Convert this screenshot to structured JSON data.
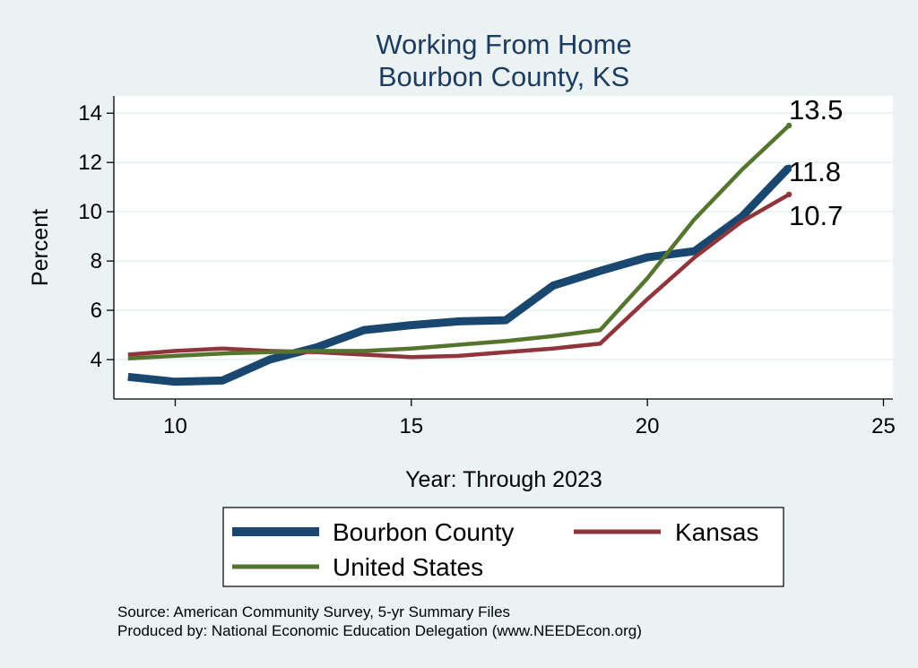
{
  "chart_data": {
    "type": "line",
    "title_lines": [
      "Working From Home",
      "Bourbon County, KS"
    ],
    "xlabel": "Year: Through 2023",
    "ylabel": "Percent",
    "xlim": [
      8.7,
      25.2
    ],
    "ylim": [
      2.4,
      14.7
    ],
    "x_ticks": [
      10,
      15,
      20,
      25
    ],
    "y_ticks": [
      4,
      6,
      8,
      10,
      12,
      14
    ],
    "grid": true,
    "legend_position": "bottom",
    "series": [
      {
        "name": "Bourbon County",
        "color": "#1a476f",
        "weight": "thick",
        "x": [
          9,
          10,
          11,
          12,
          13,
          14,
          15,
          16,
          17,
          18,
          19,
          20,
          21,
          22,
          23
        ],
        "y": [
          3.3,
          3.1,
          3.15,
          4.0,
          4.5,
          5.2,
          5.4,
          5.55,
          5.6,
          7.0,
          7.6,
          8.15,
          8.4,
          9.8,
          11.8
        ]
      },
      {
        "name": "Kansas",
        "color": "#90353b",
        "weight": "medium",
        "x": [
          9,
          10,
          11,
          12,
          13,
          14,
          15,
          16,
          17,
          18,
          19,
          20,
          21,
          22,
          23
        ],
        "y": [
          4.2,
          4.35,
          4.45,
          4.35,
          4.3,
          4.2,
          4.1,
          4.15,
          4.3,
          4.45,
          4.65,
          6.45,
          8.15,
          9.6,
          10.7
        ]
      },
      {
        "name": "United States",
        "color": "#55752f",
        "weight": "medium",
        "x": [
          9,
          10,
          11,
          12,
          13,
          14,
          15,
          16,
          17,
          18,
          19,
          20,
          21,
          22,
          23
        ],
        "y": [
          4.05,
          4.15,
          4.25,
          4.3,
          4.35,
          4.35,
          4.45,
          4.6,
          4.75,
          4.95,
          5.2,
          7.3,
          9.7,
          11.7,
          13.5
        ]
      }
    ],
    "end_labels": [
      {
        "series": "United States",
        "text": "13.5"
      },
      {
        "series": "Bourbon County",
        "text": "11.8"
      },
      {
        "series": "Kansas",
        "text": "10.7"
      }
    ],
    "source_lines": [
      "Source: American Community Survey, 5-yr Summary Files",
      "Produced by: National Economic Education Delegation (www.NEEDEcon.org)"
    ]
  }
}
